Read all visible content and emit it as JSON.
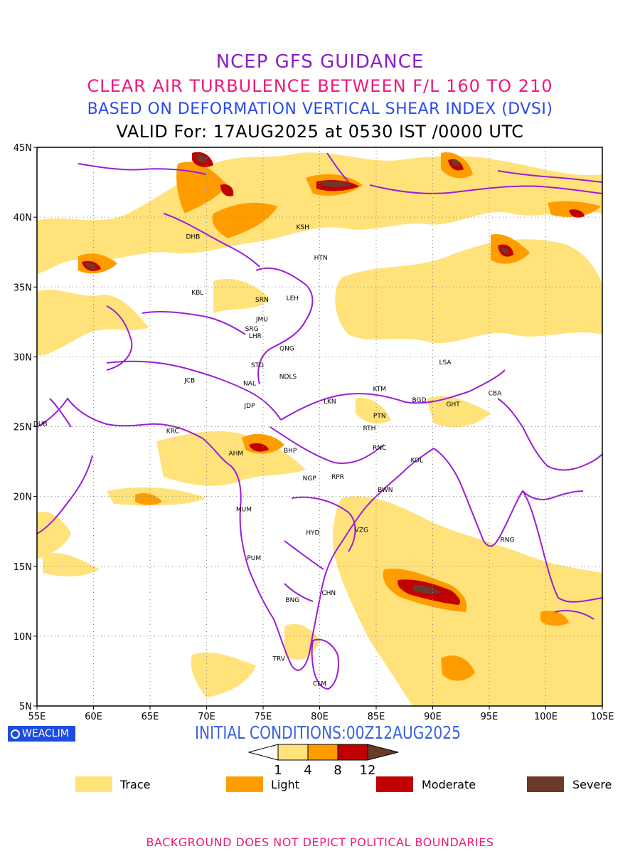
{
  "titles": {
    "line1": "NCEP GFS GUIDANCE",
    "line2": "CLEAR AIR TURBULENCE BETWEEN F/L 160 TO 210",
    "line3": "BASED ON DEFORMATION VERTICAL SHEAR INDEX (DVSI)",
    "line4": "VALID For: 17AUG2025 at 0530 IST /0000 UTC"
  },
  "map": {
    "lat_ticks": [
      "45N",
      "40N",
      "35N",
      "30N",
      "25N",
      "20N",
      "15N",
      "10N",
      "5N"
    ],
    "lon_ticks": [
      "55E",
      "60E",
      "65E",
      "70E",
      "75E",
      "80E",
      "85E",
      "90E",
      "95E",
      "100E",
      "105E"
    ],
    "lon_range": [
      55,
      105
    ],
    "lat_range": [
      5,
      45
    ],
    "grid": "dotted",
    "boundary_color": "#9a1fd6",
    "stations": [
      {
        "code": "KSH",
        "lon": 78.5,
        "lat": 39.3
      },
      {
        "code": "DHB",
        "lon": 68.8,
        "lat": 38.6
      },
      {
        "code": "HTN",
        "lon": 80.1,
        "lat": 37.1
      },
      {
        "code": "KBL",
        "lon": 69.2,
        "lat": 34.6
      },
      {
        "code": "SRN",
        "lon": 74.9,
        "lat": 34.1
      },
      {
        "code": "LEH",
        "lon": 77.6,
        "lat": 34.2
      },
      {
        "code": "JMU",
        "lon": 74.9,
        "lat": 32.7
      },
      {
        "code": "SRG",
        "lon": 74.0,
        "lat": 32.0
      },
      {
        "code": "LHR",
        "lon": 74.3,
        "lat": 31.5
      },
      {
        "code": "QNG",
        "lon": 77.1,
        "lat": 30.6
      },
      {
        "code": "STG",
        "lon": 74.5,
        "lat": 29.4
      },
      {
        "code": "LSA",
        "lon": 91.1,
        "lat": 29.6
      },
      {
        "code": "JCB",
        "lon": 68.5,
        "lat": 28.3
      },
      {
        "code": "NAL",
        "lon": 73.8,
        "lat": 28.1
      },
      {
        "code": "NDLS",
        "lon": 77.2,
        "lat": 28.6
      },
      {
        "code": "KTM",
        "lon": 85.3,
        "lat": 27.7
      },
      {
        "code": "CBA",
        "lon": 95.5,
        "lat": 27.4
      },
      {
        "code": "BGD",
        "lon": 88.8,
        "lat": 26.9
      },
      {
        "code": "GHT",
        "lon": 91.8,
        "lat": 26.6
      },
      {
        "code": "JDP",
        "lon": 73.8,
        "lat": 26.5
      },
      {
        "code": "LKN",
        "lon": 80.9,
        "lat": 26.8
      },
      {
        "code": "PTN",
        "lon": 85.3,
        "lat": 25.8
      },
      {
        "code": "DUB",
        "lon": 55.3,
        "lat": 25.2
      },
      {
        "code": "RTH",
        "lon": 84.4,
        "lat": 24.9
      },
      {
        "code": "KRC",
        "lon": 67.0,
        "lat": 24.7
      },
      {
        "code": "AHM",
        "lon": 72.6,
        "lat": 23.1
      },
      {
        "code": "BHP",
        "lon": 77.4,
        "lat": 23.3
      },
      {
        "code": "RNC",
        "lon": 85.3,
        "lat": 23.5
      },
      {
        "code": "KOL",
        "lon": 88.6,
        "lat": 22.6
      },
      {
        "code": "NGP",
        "lon": 79.1,
        "lat": 21.3
      },
      {
        "code": "RPR",
        "lon": 81.6,
        "lat": 21.4
      },
      {
        "code": "BWN",
        "lon": 85.8,
        "lat": 20.5
      },
      {
        "code": "MUM",
        "lon": 73.3,
        "lat": 19.1
      },
      {
        "code": "HYD",
        "lon": 79.4,
        "lat": 17.4
      },
      {
        "code": "VZG",
        "lon": 83.7,
        "lat": 17.6
      },
      {
        "code": "RNG",
        "lon": 96.6,
        "lat": 16.9
      },
      {
        "code": "PUM",
        "lon": 74.2,
        "lat": 15.6
      },
      {
        "code": "CHN",
        "lon": 80.8,
        "lat": 13.1
      },
      {
        "code": "BNG",
        "lon": 77.6,
        "lat": 12.6
      },
      {
        "code": "TRV",
        "lon": 76.4,
        "lat": 8.4
      },
      {
        "code": "CLM",
        "lon": 80.0,
        "lat": 6.6
      }
    ]
  },
  "bottom": {
    "badge": "WEACLIM",
    "initial_conditions": "INITIAL CONDITIONS:00Z12AUG2025"
  },
  "colorbar": {
    "levels": [
      "1",
      "4",
      "8",
      "12"
    ],
    "colors": [
      "#ffe27a",
      "#ff9d00",
      "#c10000",
      "#6a3a2a"
    ]
  },
  "legend": [
    {
      "label": "Trace",
      "color": "#ffe27a"
    },
    {
      "label": "Light",
      "color": "#ff9d00"
    },
    {
      "label": "Moderate",
      "color": "#c10000"
    },
    {
      "label": "Severe",
      "color": "#6a3a2a"
    }
  ],
  "footer": "BACKGROUND DOES NOT DEPICT POLITICAL BOUNDARIES"
}
